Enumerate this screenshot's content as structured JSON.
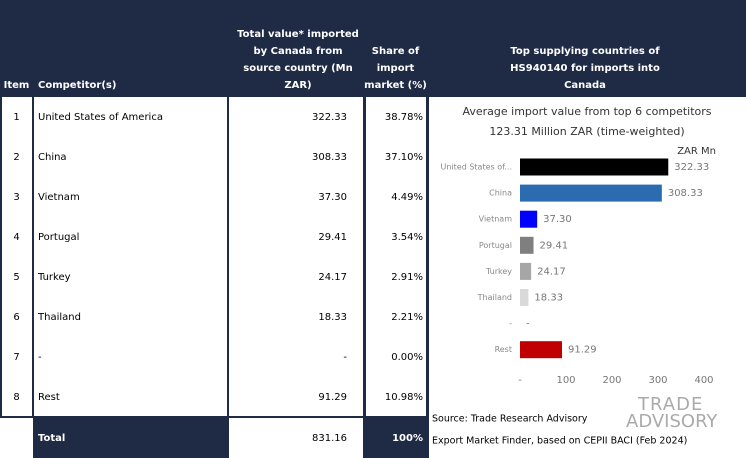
{
  "table": {
    "header": [
      "Item",
      "Competitor(s)",
      "Total value* imported by Canada from source country (Mn ZAR)",
      "Share of import market (%)",
      "Top supplying countries of HS940140 for imports into Canada"
    ],
    "rows": [
      [
        "1",
        "United States of America",
        "322.33",
        "38.78%"
      ],
      [
        "2",
        "China",
        "308.33",
        "37.10%"
      ],
      [
        "3",
        "Vietnam",
        "37.30",
        "4.49%"
      ],
      [
        "4",
        "Portugal",
        "29.41",
        "3.54%"
      ],
      [
        "5",
        "Turkey",
        "24.17",
        "2.91%"
      ],
      [
        "6",
        "Thailand",
        "18.33",
        "2.21%"
      ],
      [
        "7",
        "-",
        "-",
        "0.00%"
      ],
      [
        "8",
        "Rest",
        "91.29",
        "10.98%"
      ]
    ],
    "total": [
      "Total",
      "831.16",
      "100%"
    ]
  },
  "chart_data": {
    "type": "bar",
    "orientation": "horizontal",
    "title": "Average import value from top 6 competitors",
    "subtitle": "123.31 Million ZAR (time-weighted)",
    "x_label": "ZAR Mn",
    "categories": [
      "United States of...",
      "China",
      "Vietnam",
      "Portugal",
      "Turkey",
      "Thailand",
      "-",
      "Rest"
    ],
    "values": [
      322.33,
      308.33,
      37.3,
      29.41,
      24.17,
      18.33,
      null,
      91.29
    ],
    "value_labels": [
      "322.33",
      "308.33",
      "37.30",
      "29.41",
      "24.17",
      "18.33",
      "-",
      "91.29"
    ],
    "colors": [
      "#000000",
      "#2b6cb0",
      "#0000ff",
      "#7f7f7f",
      "#a6a6a6",
      "#d9d9d9",
      "#d9d9d9",
      "#c00000"
    ],
    "xlim": [
      0,
      400
    ],
    "xticks": [
      {
        "value": 0,
        "label": "-"
      },
      100,
      200,
      300,
      400
    ]
  },
  "footer": {
    "source": "Source: Trade Research Advisory",
    "note": "Export Market Finder, based on CEPII BACI (Feb 2024)",
    "logo": [
      "TRADE",
      "ADVISORY"
    ]
  }
}
